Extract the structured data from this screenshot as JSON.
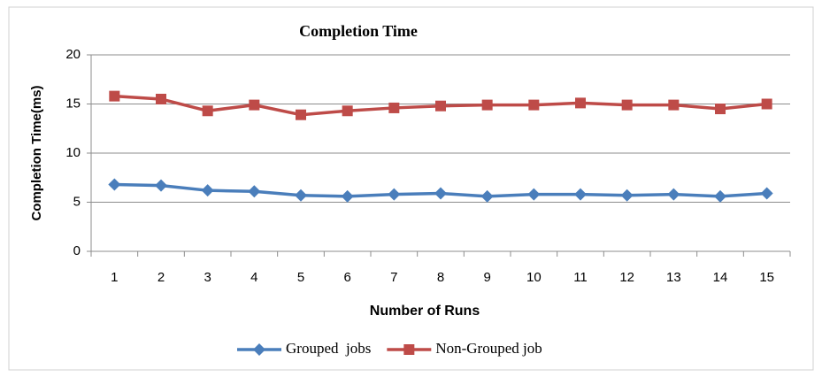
{
  "chart_data": {
    "type": "line",
    "title": "Completion Time",
    "xlabel": "Number of Runs",
    "ylabel": "Completion Time(ms)",
    "categories": [
      "1",
      "2",
      "3",
      "4",
      "5",
      "6",
      "7",
      "8",
      "9",
      "10",
      "11",
      "12",
      "13",
      "14",
      "15"
    ],
    "series": [
      {
        "name": "Grouped  jobs",
        "color": "#4a7ebb",
        "marker": "diamond",
        "values": [
          6.8,
          6.7,
          6.2,
          6.1,
          5.7,
          5.6,
          5.8,
          5.9,
          5.6,
          5.8,
          5.8,
          5.7,
          5.8,
          5.6,
          5.9
        ]
      },
      {
        "name": "Non-Grouped job",
        "color": "#be4b48",
        "marker": "square",
        "values": [
          15.8,
          15.5,
          14.3,
          14.9,
          13.9,
          14.3,
          14.6,
          14.8,
          14.9,
          14.9,
          15.1,
          14.9,
          14.9,
          14.5,
          15.0
        ]
      }
    ],
    "ylim": [
      0,
      20
    ],
    "yticks": [
      0,
      5,
      10,
      15,
      20
    ],
    "grid": true,
    "legend": "bottom"
  }
}
